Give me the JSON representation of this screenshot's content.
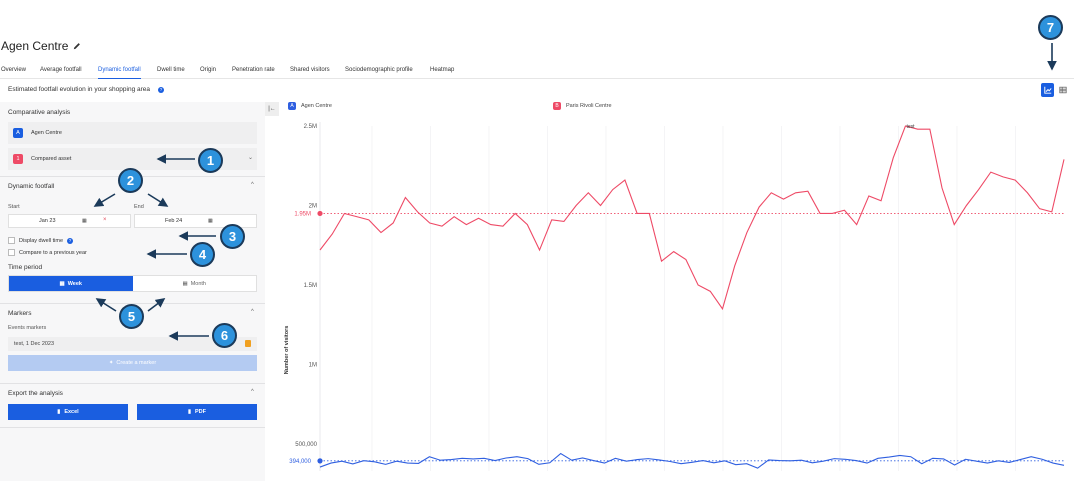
{
  "header": {
    "title": "Agen Centre",
    "tabs": [
      {
        "label": "Overview",
        "active": false
      },
      {
        "label": "Average footfall",
        "active": false
      },
      {
        "label": "Dynamic footfall",
        "active": true
      },
      {
        "label": "Dwell time",
        "active": false
      },
      {
        "label": "Origin",
        "active": false
      },
      {
        "label": "Penetration rate",
        "active": false
      },
      {
        "label": "Shared visitors",
        "active": false
      },
      {
        "label": "Sociodemographic profile",
        "active": false
      },
      {
        "label": "Heatmap",
        "active": false
      }
    ],
    "subtitle": "Estimated footfall evolution in your shopping area"
  },
  "panel": {
    "comparative": {
      "title": "Comparative analysis",
      "asset_badge": "A",
      "asset_label": "Agen Centre",
      "compared_badge": "1",
      "compared_label": "Compared asset"
    },
    "dynamic": {
      "title": "Dynamic footfall",
      "start_label": "Start",
      "end_label": "End",
      "start_value": "Jan 23",
      "end_value": "Feb 24",
      "dwell_label": "Display dwell time",
      "compare_label": "Compare to a previous year",
      "period_label": "Time period",
      "week_label": "Week",
      "month_label": "Month"
    },
    "markers": {
      "title": "Markers",
      "events_label": "Events markers",
      "marker_item": "test, 1 Dec 2023",
      "create_label": "Create a marker"
    },
    "export": {
      "title": "Export the analysis",
      "excel_label": "Excel",
      "pdf_label": "PDF"
    }
  },
  "annotations": [
    "1",
    "2",
    "3",
    "4",
    "5",
    "6",
    "7"
  ],
  "colors": {
    "accent": "#1a5ee0",
    "series_a": "#2f5fe0",
    "series_b": "#ee4a66",
    "annotation": "#2d92dc"
  },
  "icons": [
    "pencil-icon",
    "info-icon",
    "chevron-down-icon",
    "chevron-up-icon",
    "calendar-icon",
    "clear-icon",
    "collapse-icon",
    "trash-icon",
    "pin-icon",
    "file-icon",
    "line-chart-icon",
    "table-icon"
  ],
  "chart_data": {
    "type": "line",
    "ylabel": "Number of visitors",
    "yticks": [
      "500,000",
      "1M",
      "1.5M",
      "2M",
      "2.5M"
    ],
    "ylim": [
      420000,
      2600000
    ],
    "grid": true,
    "legend_position": "top",
    "annotation_text": "test",
    "series": [
      {
        "name": "Agen Centre",
        "badge": "A",
        "average_label": "394,000",
        "average": 394000,
        "values": [
          355000,
          380000,
          392000,
          375000,
          395000,
          388000,
          372000,
          392000,
          380000,
          378000,
          420000,
          398000,
          402000,
          410000,
          406000,
          410000,
          396000,
          412000,
          420000,
          408000,
          372000,
          382000,
          440000,
          398000,
          412000,
          396000,
          380000,
          410000,
          392000,
          402000,
          408000,
          400000,
          390000,
          376000,
          385000,
          396000,
          382000,
          394000,
          370000,
          376000,
          348000,
          400000,
          396000,
          394000,
          398000,
          382000,
          392000,
          408000,
          404000,
          396000,
          380000,
          410000,
          418000,
          428000,
          420000,
          376000,
          410000,
          406000,
          368000,
          404000,
          392000,
          380000,
          394000,
          384000,
          402000,
          420000,
          404000,
          380000,
          366000
        ],
        "color": "#2f5fe0"
      },
      {
        "name": "Paris Rivoli Centre",
        "badge": "B",
        "average_label": "1.95M",
        "average": 1950000,
        "values": [
          1720000,
          1820000,
          1950000,
          1930000,
          1910000,
          1830000,
          1890000,
          2050000,
          1960000,
          1890000,
          1870000,
          1930000,
          1880000,
          1920000,
          1880000,
          1870000,
          1950000,
          1880000,
          1720000,
          1910000,
          1900000,
          2000000,
          2080000,
          2000000,
          2100000,
          2160000,
          1950000,
          1950000,
          1650000,
          1710000,
          1660000,
          1500000,
          1460000,
          1350000,
          1620000,
          1830000,
          1990000,
          2080000,
          2040000,
          2080000,
          2090000,
          1950000,
          1950000,
          1970000,
          1880000,
          2060000,
          2030000,
          2300000,
          2500000,
          2480000,
          2480000,
          2110000,
          1880000,
          2000000,
          2100000,
          2210000,
          2180000,
          2160000,
          2080000,
          1980000,
          1960000,
          2290000
        ],
        "color": "#ee4a66"
      }
    ]
  }
}
